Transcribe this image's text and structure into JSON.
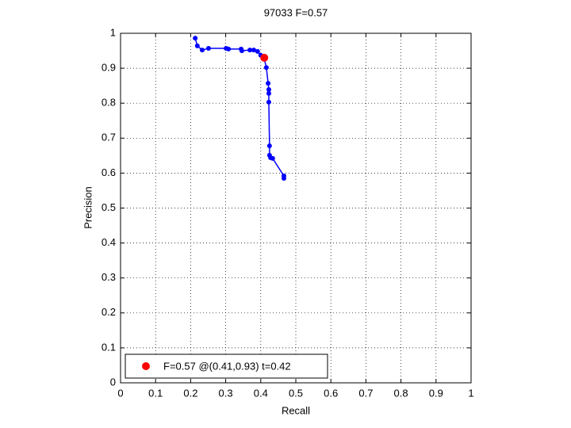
{
  "chart_data": {
    "type": "line",
    "title": "97033 F=0.57",
    "xlabel": "Recall",
    "ylabel": "Precision",
    "xlim": [
      0,
      1
    ],
    "ylim": [
      0,
      1
    ],
    "xticks": [
      0,
      0.1,
      0.2,
      0.3,
      0.4,
      0.5,
      0.6,
      0.7,
      0.8,
      0.9,
      1
    ],
    "yticks": [
      0,
      0.1,
      0.2,
      0.3,
      0.4,
      0.5,
      0.6,
      0.7,
      0.8,
      0.9,
      1
    ],
    "grid": true,
    "legend": "lower left",
    "series": [
      {
        "color": "#0000ff",
        "x": [
          0.213,
          0.219,
          0.233,
          0.251,
          0.301,
          0.308,
          0.344,
          0.346,
          0.369,
          0.38,
          0.391,
          0.4,
          0.41,
          0.416,
          0.421,
          0.423,
          0.423,
          0.423,
          0.425,
          0.425,
          0.428,
          0.434,
          0.466,
          0.466
        ],
        "values": [
          0.986,
          0.964,
          0.952,
          0.957,
          0.957,
          0.955,
          0.955,
          0.95,
          0.952,
          0.952,
          0.948,
          0.937,
          0.927,
          0.902,
          0.857,
          0.839,
          0.828,
          0.803,
          0.678,
          0.651,
          0.644,
          0.642,
          0.592,
          0.585
        ]
      },
      {
        "name": "F=0.57 @(0.41,0.93) t=0.42",
        "color": "#ff0000",
        "x": [
          0.41
        ],
        "values": [
          0.93
        ]
      }
    ]
  }
}
